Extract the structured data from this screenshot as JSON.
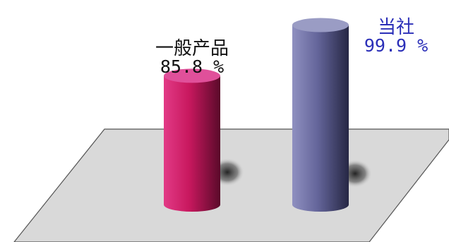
{
  "chart_data": {
    "type": "bar",
    "style": "3d-cylinder",
    "categories": [
      "一般产品",
      "当社"
    ],
    "values": [
      85.8,
      99.9
    ],
    "value_labels": [
      "85.8 %",
      "99.9 %"
    ],
    "ylim": [
      50,
      100
    ],
    "grid": false,
    "legend": "none",
    "colors": {
      "bars": [
        "#c8185e",
        "#64659a"
      ],
      "bar_tops": [
        "#e0509a",
        "#9a9cc4"
      ],
      "label_highlight": "#2b2fb8",
      "floor": "#d9d9d9"
    },
    "highlight_index": 1
  }
}
